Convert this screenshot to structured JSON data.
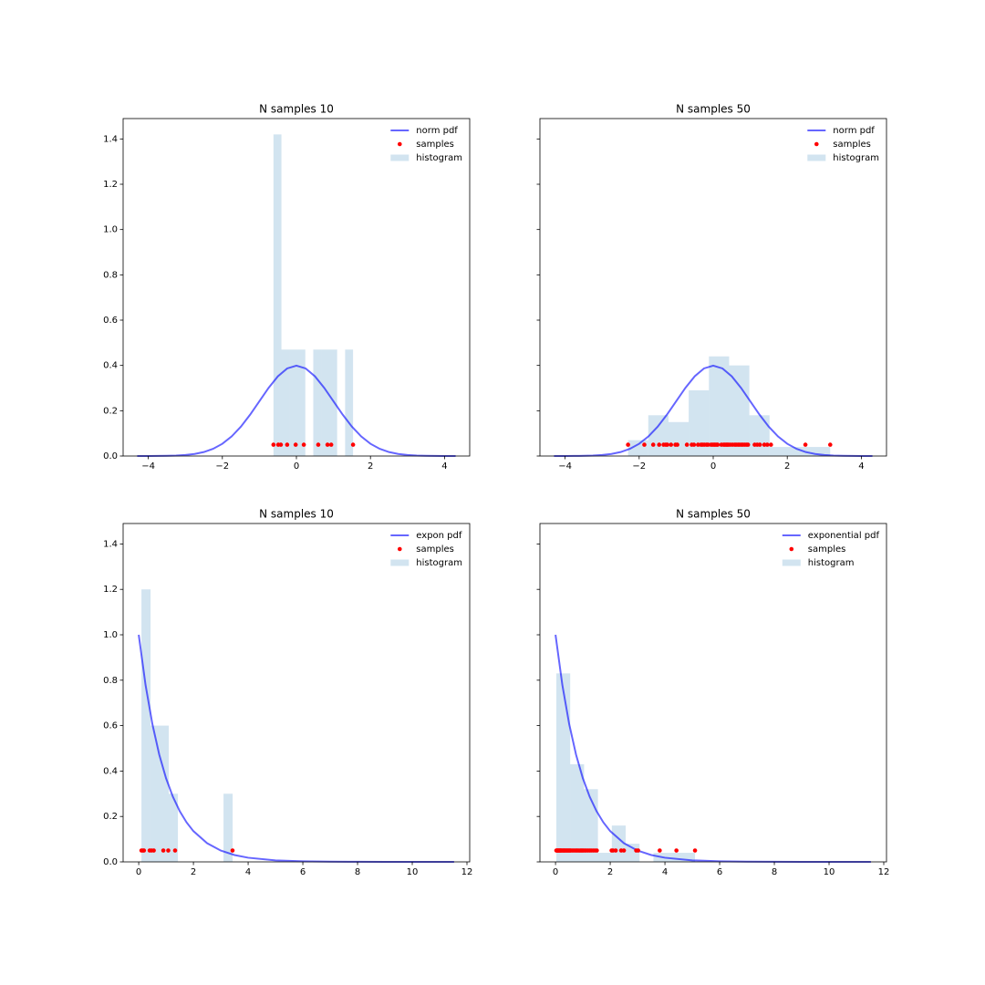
{
  "chart_data": [
    {
      "type": "histogram",
      "title": "N samples 10",
      "legend": "upper right",
      "ytick_labels": true,
      "xlim": [
        -4.68,
        4.68
      ],
      "ylim": [
        0,
        1.49
      ],
      "xticks": [
        {
          "value": -4,
          "label": "−4"
        },
        {
          "value": -2,
          "label": "−2"
        },
        0,
        2,
        4
      ],
      "yticks": [
        {
          "value": 0,
          "label": "0.0"
        },
        0.2,
        0.4,
        0.6,
        0.8,
        {
          "value": 1,
          "label": "1.0"
        },
        1.2,
        1.4
      ],
      "series": [
        {
          "name": "norm pdf",
          "type": "line",
          "color": "#0000ff",
          "alpha": 0.6,
          "x": [
            -4.3,
            -4,
            -3.75,
            -3.5,
            -3.25,
            -3,
            -2.75,
            -2.5,
            -2.25,
            -2,
            -1.75,
            -1.5,
            -1.25,
            -1,
            -0.75,
            -0.5,
            -0.25,
            0,
            0.25,
            0.5,
            0.75,
            1,
            1.25,
            1.5,
            1.75,
            2,
            2.25,
            2.5,
            2.75,
            3,
            3.25,
            3.5,
            3.75,
            4,
            4.3
          ],
          "values": [
            0,
            0.0001,
            0.0004,
            0.0009,
            0.002,
            0.0044,
            0.0091,
            0.0175,
            0.0317,
            0.054,
            0.0863,
            0.1295,
            0.1826,
            0.242,
            0.3011,
            0.3521,
            0.3867,
            0.3989,
            0.3867,
            0.3521,
            0.3011,
            0.242,
            0.1826,
            0.1295,
            0.0863,
            0.054,
            0.0317,
            0.0175,
            0.0091,
            0.0044,
            0.002,
            0.0009,
            0.0004,
            0.0001,
            0
          ]
        },
        {
          "name": "samples",
          "type": "scatter",
          "color": "#ff0000",
          "y": 0.05,
          "x": [
            -0.62,
            -0.49,
            -0.42,
            -0.25,
            -0.02,
            0.2,
            0.59,
            0.84,
            0.94,
            1.53
          ]
        },
        {
          "name": "histogram",
          "type": "histogram",
          "color": "#1f77b4",
          "alpha": 0.2,
          "bins": [
            -0.62,
            -0.405,
            -0.19,
            0.025,
            0.24,
            0.455,
            0.67,
            0.885,
            1.1,
            1.315,
            1.53
          ],
          "values": [
            1.42,
            0.47,
            0.47,
            0.47,
            0,
            0.47,
            0.47,
            0.47,
            0,
            0.47
          ]
        }
      ]
    },
    {
      "type": "histogram",
      "title": "N samples 50",
      "legend": "upper right",
      "ytick_labels": false,
      "xlim": [
        -4.68,
        4.68
      ],
      "ylim": [
        0,
        1.49
      ],
      "xticks": [
        {
          "value": -4,
          "label": "−4"
        },
        {
          "value": -2,
          "label": "−2"
        },
        0,
        2,
        4
      ],
      "yticks": [
        0,
        0.2,
        0.4,
        0.6,
        0.8,
        1,
        1.2,
        1.4
      ],
      "series": [
        {
          "name": "norm pdf",
          "type": "line",
          "color": "#0000ff",
          "alpha": 0.6,
          "x": [
            -4.3,
            -4,
            -3.75,
            -3.5,
            -3.25,
            -3,
            -2.75,
            -2.5,
            -2.25,
            -2,
            -1.75,
            -1.5,
            -1.25,
            -1,
            -0.75,
            -0.5,
            -0.25,
            0,
            0.25,
            0.5,
            0.75,
            1,
            1.25,
            1.5,
            1.75,
            2,
            2.25,
            2.5,
            2.75,
            3,
            3.25,
            3.5,
            3.75,
            4,
            4.3
          ],
          "values": [
            0,
            0.0001,
            0.0004,
            0.0009,
            0.002,
            0.0044,
            0.0091,
            0.0175,
            0.0317,
            0.054,
            0.0863,
            0.1295,
            0.1826,
            0.242,
            0.3011,
            0.3521,
            0.3867,
            0.3989,
            0.3867,
            0.3521,
            0.3011,
            0.242,
            0.1826,
            0.1295,
            0.0863,
            0.054,
            0.0317,
            0.0175,
            0.0091,
            0.0044,
            0.002,
            0.0009,
            0.0004,
            0.0001,
            0
          ]
        },
        {
          "name": "samples",
          "type": "scatter",
          "color": "#ff0000",
          "y": 0.05,
          "x": [
            -2.3,
            -1.86,
            -1.62,
            -1.46,
            -1.34,
            -1.28,
            -1.24,
            -1.14,
            -1.02,
            -0.97,
            -0.71,
            -0.58,
            -0.52,
            -0.41,
            -0.33,
            -0.29,
            -0.24,
            -0.18,
            -0.14,
            -0.06,
            -0.02,
            0.02,
            0.05,
            0.09,
            0.12,
            0.22,
            0.28,
            0.31,
            0.35,
            0.38,
            0.41,
            0.46,
            0.52,
            0.58,
            0.62,
            0.67,
            0.71,
            0.76,
            0.8,
            0.85,
            0.9,
            0.94,
            1.12,
            1.19,
            1.26,
            1.38,
            1.46,
            1.56,
            2.49,
            3.16
          ]
        },
        {
          "name": "histogram",
          "type": "histogram",
          "color": "#1f77b4",
          "alpha": 0.2,
          "bins": [
            -2.3,
            -1.754,
            -1.208,
            -0.662,
            -0.116,
            0.43,
            0.976,
            1.522,
            2.068,
            2.614,
            3.16
          ],
          "values": [
            0.07,
            0.18,
            0.15,
            0.29,
            0.44,
            0.4,
            0.18,
            0.04,
            0.04,
            0.04
          ]
        }
      ]
    },
    {
      "type": "histogram",
      "title": "N samples 10",
      "legend": "upper right",
      "ytick_labels": true,
      "xlim": [
        -0.57,
        12.1
      ],
      "ylim": [
        0,
        1.49
      ],
      "xticks": [
        0,
        2,
        4,
        6,
        8,
        10,
        12
      ],
      "yticks": [
        {
          "value": 0,
          "label": "0.0"
        },
        0.2,
        0.4,
        0.6,
        0.8,
        {
          "value": 1,
          "label": "1.0"
        },
        1.2,
        1.4
      ],
      "series": [
        {
          "name": "expon pdf",
          "type": "line",
          "color": "#0000ff",
          "alpha": 0.6,
          "x": [
            0,
            0.25,
            0.5,
            0.75,
            1,
            1.25,
            1.5,
            1.75,
            2,
            2.5,
            3,
            3.5,
            4,
            5,
            6,
            7,
            8,
            9,
            10,
            11.53
          ],
          "values": [
            1,
            0.7788,
            0.6065,
            0.4724,
            0.3679,
            0.2865,
            0.2231,
            0.1738,
            0.1353,
            0.0821,
            0.0498,
            0.0302,
            0.0183,
            0.0067,
            0.0025,
            0.0009,
            0.0003,
            0.0001,
            0,
            0
          ]
        },
        {
          "name": "samples",
          "type": "scatter",
          "color": "#ff0000",
          "y": 0.05,
          "x": [
            0.1,
            0.15,
            0.19,
            0.4,
            0.47,
            0.55,
            0.9,
            1.08,
            1.33,
            3.43
          ]
        },
        {
          "name": "histogram",
          "type": "histogram",
          "color": "#1f77b4",
          "alpha": 0.2,
          "bins": [
            0.1,
            0.433,
            0.767,
            1.1,
            1.433,
            1.767,
            2.1,
            2.433,
            2.767,
            3.1,
            3.433
          ],
          "values": [
            1.2,
            0.6,
            0.6,
            0.3,
            0,
            0,
            0,
            0,
            0,
            0.3
          ]
        }
      ]
    },
    {
      "type": "histogram",
      "title": "N samples 50",
      "legend": "upper right",
      "ytick_labels": false,
      "xlim": [
        -0.57,
        12.1
      ],
      "ylim": [
        0,
        1.49
      ],
      "xticks": [
        0,
        2,
        4,
        6,
        8,
        10,
        12
      ],
      "yticks": [
        0,
        0.2,
        0.4,
        0.6,
        0.8,
        1,
        1.2,
        1.4
      ],
      "series": [
        {
          "name": "exponential pdf",
          "type": "line",
          "color": "#0000ff",
          "alpha": 0.6,
          "x": [
            0,
            0.25,
            0.5,
            0.75,
            1,
            1.25,
            1.5,
            1.75,
            2,
            2.5,
            3,
            3.5,
            4,
            5,
            6,
            7,
            8,
            9,
            10,
            11.53
          ],
          "values": [
            1,
            0.7788,
            0.6065,
            0.4724,
            0.3679,
            0.2865,
            0.2231,
            0.1738,
            0.1353,
            0.0821,
            0.0498,
            0.0302,
            0.0183,
            0.0067,
            0.0025,
            0.0009,
            0.0003,
            0.0001,
            0,
            0
          ]
        },
        {
          "name": "samples",
          "type": "scatter",
          "color": "#ff0000",
          "y": 0.05,
          "x": [
            0.03,
            0.05,
            0.07,
            0.09,
            0.11,
            0.13,
            0.15,
            0.17,
            0.19,
            0.21,
            0.24,
            0.27,
            0.3,
            0.32,
            0.35,
            0.38,
            0.41,
            0.44,
            0.47,
            0.5,
            0.53,
            0.56,
            0.61,
            0.66,
            0.71,
            0.76,
            0.8,
            0.85,
            0.9,
            0.94,
            0.98,
            1.02,
            1.07,
            1.12,
            1.18,
            1.24,
            1.3,
            1.37,
            1.44,
            1.51,
            2.05,
            2.1,
            2.2,
            2.4,
            2.5,
            2.95,
            3.02,
            3.81,
            4.42,
            5.1
          ]
        },
        {
          "name": "histogram",
          "type": "histogram",
          "color": "#1f77b4",
          "alpha": 0.2,
          "bins": [
            0.03,
            0.537,
            1.044,
            1.551,
            2.058,
            2.565,
            3.072,
            3.579,
            4.086,
            4.593,
            5.1
          ],
          "values": [
            0.83,
            0.43,
            0.32,
            0.04,
            0.16,
            0.08,
            0,
            0.04,
            0.04,
            0.04
          ]
        }
      ]
    }
  ]
}
